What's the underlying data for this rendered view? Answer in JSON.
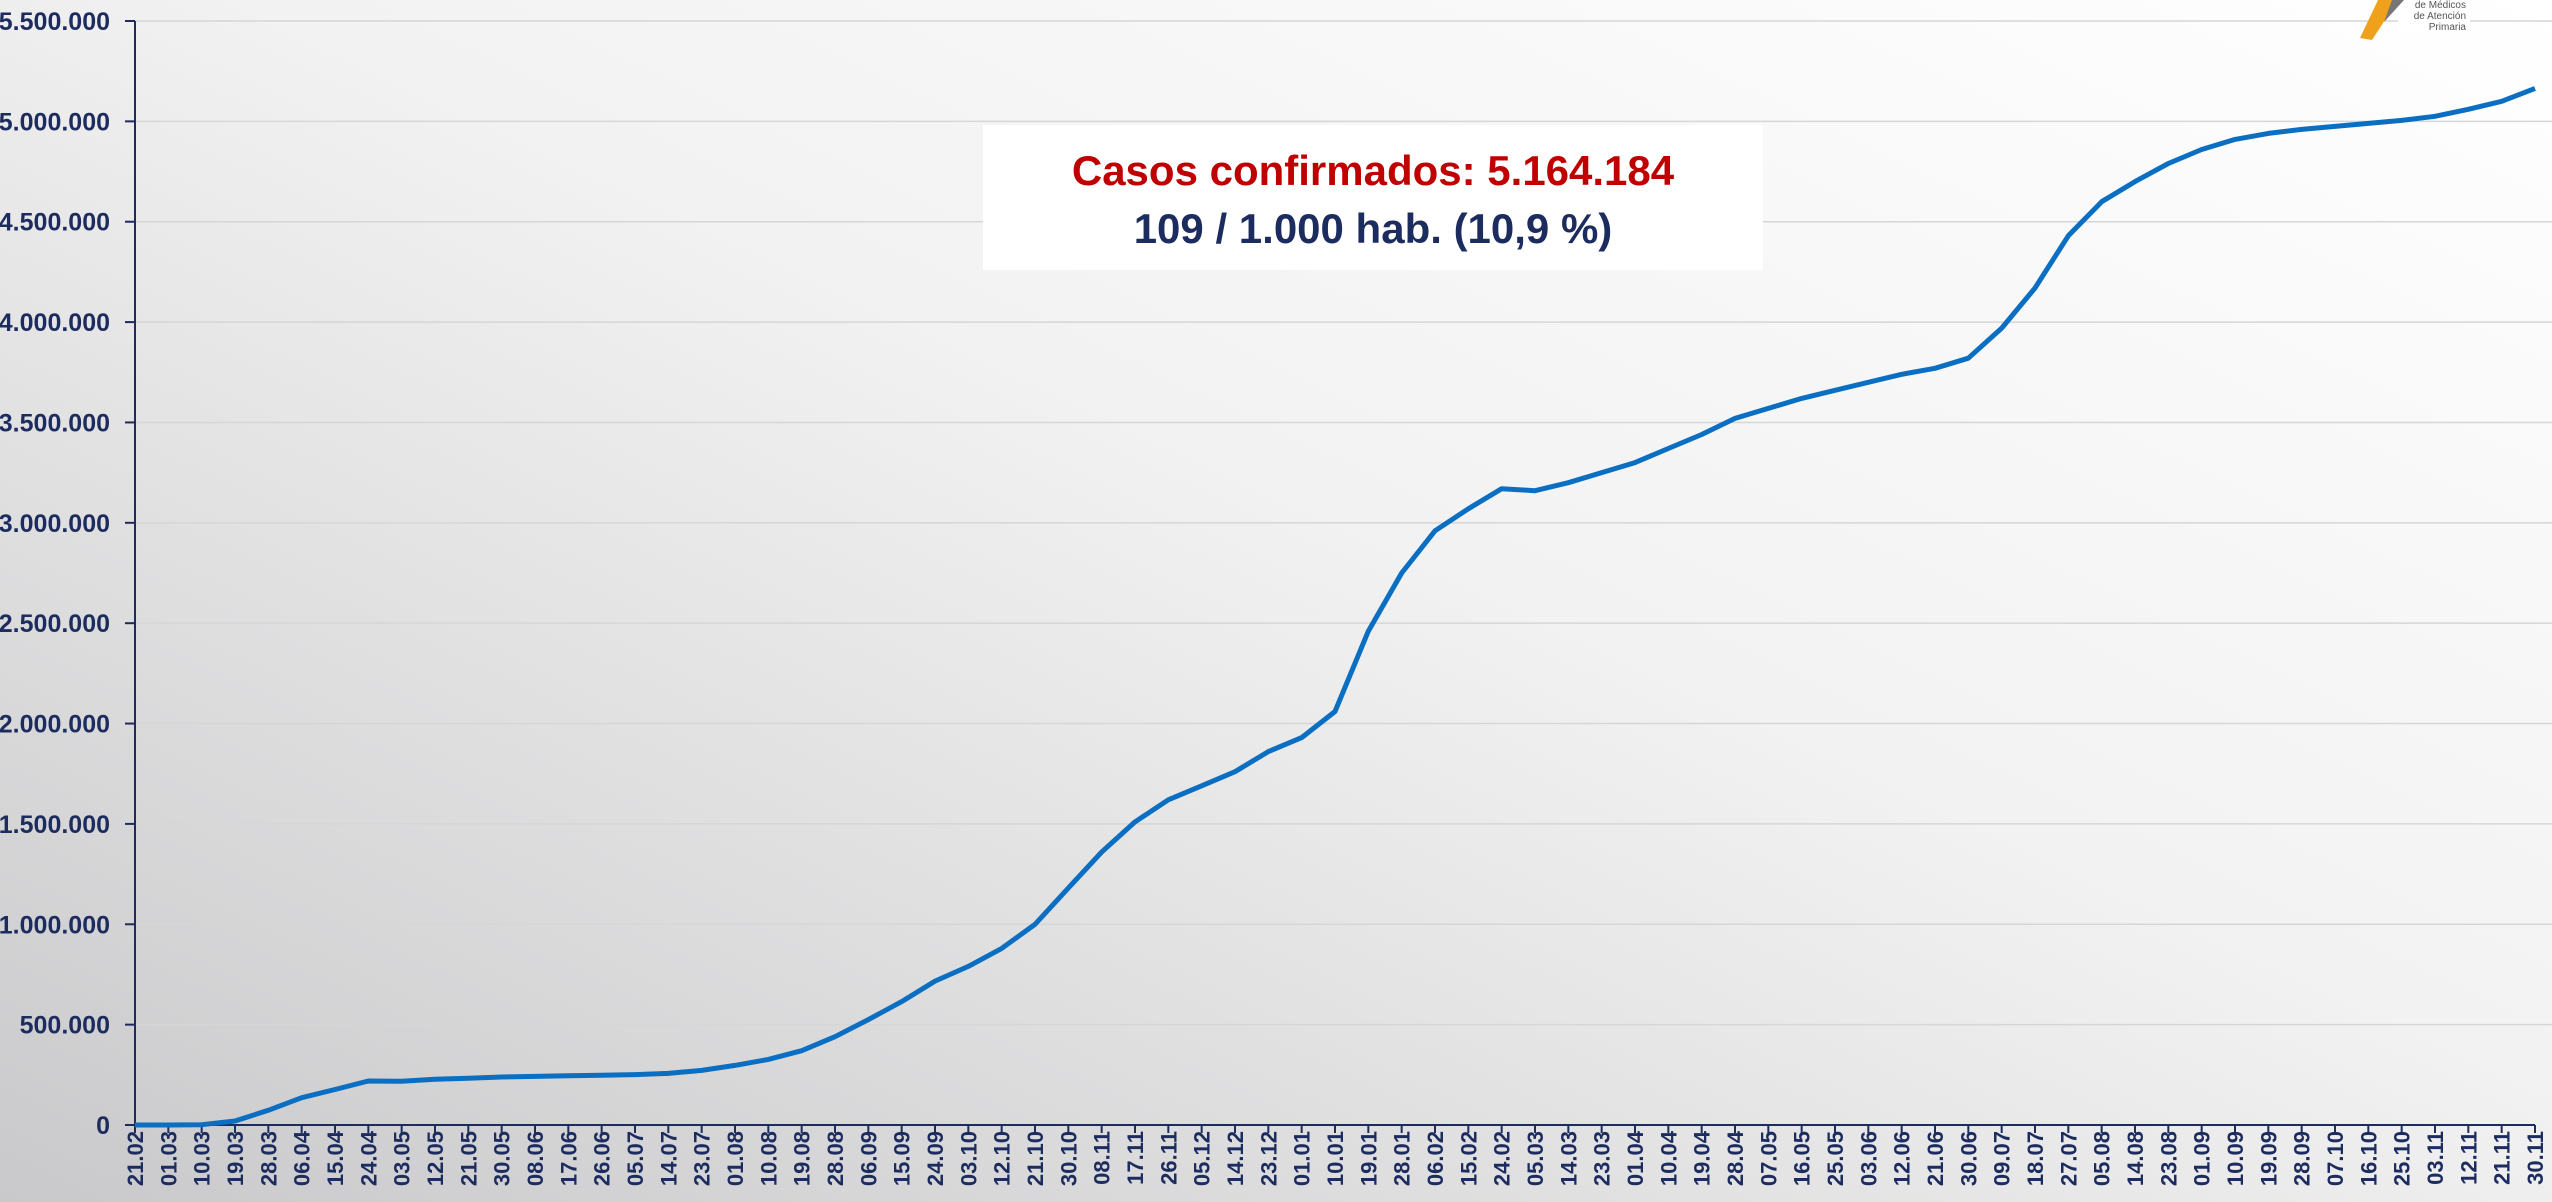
{
  "chart_data": {
    "type": "line",
    "annotation": {
      "title": "Casos confirmados: 5.164.184",
      "subtitle": "109 / 1.000 hab. (10,9 %)"
    },
    "logo": {
      "lines": [
        "de Médicos",
        "de Atención",
        "Primaria"
      ]
    },
    "categories": [
      "21.02",
      "01.03",
      "10.03",
      "19.03",
      "28.03",
      "06.04",
      "15.04",
      "24.04",
      "03.05",
      "12.05",
      "21.05",
      "30.05",
      "08.06",
      "17.06",
      "26.06",
      "05.07",
      "14.07",
      "23.07",
      "01.08",
      "10.08",
      "19.08",
      "28.08",
      "06.09",
      "15.09",
      "24.09",
      "03.10",
      "12.10",
      "21.10",
      "30.10",
      "08.11",
      "17.11",
      "26.11",
      "05.12",
      "14.12",
      "23.12",
      "01.01",
      "10.01",
      "19.01",
      "28.01",
      "06.02",
      "15.02",
      "24.02",
      "05.03",
      "14.03",
      "23.03",
      "01.04",
      "10.04",
      "19.04",
      "28.04",
      "07.05",
      "16.05",
      "25.05",
      "03.06",
      "12.06",
      "21.06",
      "30.06",
      "09.07",
      "18.07",
      "27.07",
      "05.08",
      "14.08",
      "23.08",
      "01.09",
      "10.09",
      "19.09",
      "28.09",
      "07.10",
      "16.10",
      "25.10",
      "03.11",
      "12.11",
      "21.11",
      "30.11"
    ],
    "series": [
      {
        "name": "Casos confirmados",
        "color": "#0a6fc2",
        "values": [
          0,
          100,
          1600,
          20000,
          73000,
          136000,
          177000,
          219000,
          218000,
          228000,
          233000,
          239000,
          242000,
          245000,
          248000,
          251000,
          257000,
          272000,
          297000,
          327000,
          370000,
          440000,
          525000,
          615000,
          717000,
          790000,
          880000,
          1000000,
          1180000,
          1360000,
          1510000,
          1620000,
          1690000,
          1760000,
          1860000,
          1930000,
          2060000,
          2460000,
          2750000,
          2960000,
          3070000,
          3170000,
          3160000,
          3200000,
          3250000,
          3300000,
          3370000,
          3440000,
          3520000,
          3570000,
          3620000,
          3660000,
          3700000,
          3740000,
          3770000,
          3820000,
          3970000,
          4170000,
          4430000,
          4600000,
          4700000,
          4790000,
          4860000,
          4910000,
          4940000,
          4960000,
          4975000,
          4990000,
          5005000,
          5025000,
          5060000,
          5100000,
          5164184
        ]
      }
    ],
    "ylim": [
      0,
      5500000
    ],
    "yticks": [
      0,
      {
        "value": 500000,
        "label": "500.000"
      },
      {
        "value": 1000000,
        "label": "1.000.000"
      },
      {
        "value": 1500000,
        "label": "1.500.000"
      },
      {
        "value": 2000000,
        "label": "2.000.000"
      },
      {
        "value": 2500000,
        "label": "2.500.000"
      },
      {
        "value": 3000000,
        "label": "3.000.000"
      },
      {
        "value": 3500000,
        "label": "3.500.000"
      },
      {
        "value": 4000000,
        "label": "4.000.000"
      },
      {
        "value": 4500000,
        "label": "4.500.000"
      },
      {
        "value": 5000000,
        "label": "5.000.000"
      },
      {
        "value": 5500000,
        "label": "5.500.000"
      }
    ],
    "grid": true
  }
}
